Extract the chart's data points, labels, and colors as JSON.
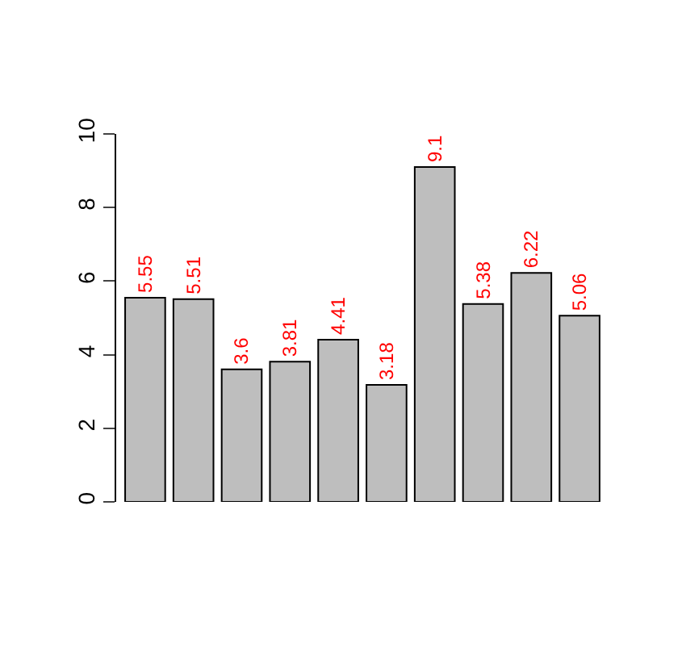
{
  "chart_data": {
    "type": "bar",
    "categories": [
      null,
      null,
      null,
      null,
      null,
      null,
      null,
      null,
      null,
      null
    ],
    "values": [
      5.55,
      5.51,
      3.6,
      3.81,
      4.41,
      3.18,
      9.1,
      5.38,
      6.22,
      5.06
    ],
    "color": "#bebebe",
    "data_labels": true,
    "ylim": [
      0,
      10
    ],
    "yticks": [
      0,
      2,
      4,
      6,
      8,
      10
    ],
    "tick_labels": "y"
  }
}
